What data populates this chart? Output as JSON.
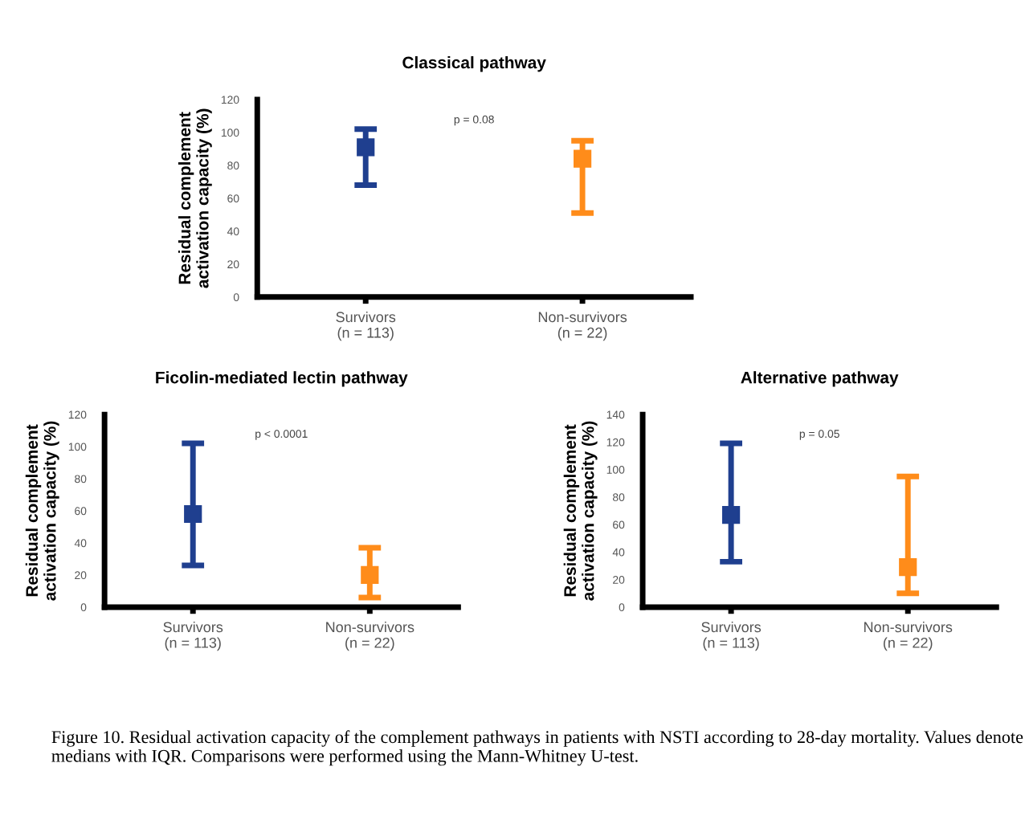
{
  "chart_data": [
    {
      "type": "scatter",
      "title": "Classical pathway",
      "ylabel": "Residual complement\nactivation capacity (%)",
      "categories": [
        "Survivors\n(n = 113)",
        "Non-survivors\n(n = 22)"
      ],
      "values": [
        91,
        84
      ],
      "errors": [
        [
          68,
          102
        ],
        [
          51,
          95
        ]
      ],
      "colors": [
        "#1f3f8f",
        "#ff8c1a"
      ],
      "marker": "square",
      "ylim": [
        0,
        120
      ],
      "yticks": [
        0,
        20,
        40,
        60,
        80,
        100,
        120
      ],
      "grid": false,
      "legend": false,
      "annotations": [
        "p = 0.08"
      ]
    },
    {
      "type": "scatter",
      "title": "Ficolin-mediated lectin pathway",
      "ylabel": "Residual complement\nactivation capacity (%)",
      "categories": [
        "Survivors\n(n = 113)",
        "Non-survivors\n(n = 22)"
      ],
      "values": [
        58,
        20
      ],
      "errors": [
        [
          26,
          102
        ],
        [
          6,
          37
        ]
      ],
      "colors": [
        "#1f3f8f",
        "#ff8c1a"
      ],
      "marker": "square",
      "ylim": [
        0,
        120
      ],
      "yticks": [
        0,
        20,
        40,
        60,
        80,
        100,
        120
      ],
      "grid": false,
      "legend": false,
      "annotations": [
        "p < 0.0001"
      ]
    },
    {
      "type": "scatter",
      "title": "Alternative pathway",
      "ylabel": "Residual complement\nactivation capacity (%)",
      "categories": [
        "Survivors\n(n = 113)",
        "Non-survivors\n(n = 22)"
      ],
      "values": [
        67,
        29
      ],
      "errors": [
        [
          33,
          119
        ],
        [
          10,
          95
        ]
      ],
      "colors": [
        "#1f3f8f",
        "#ff8c1a"
      ],
      "marker": "square",
      "ylim": [
        0,
        140
      ],
      "yticks": [
        0,
        20,
        40,
        60,
        80,
        100,
        120,
        140
      ],
      "grid": false,
      "legend": false,
      "annotations": [
        "p = 0.05",
        "Figure 10. Residual activation capacity of the complement pathways in patients with NSTI according to 28-day mortality. Values denote medians with IQR. Comparisons were performed using the Mann-Whitney U-test."
      ]
    }
  ]
}
